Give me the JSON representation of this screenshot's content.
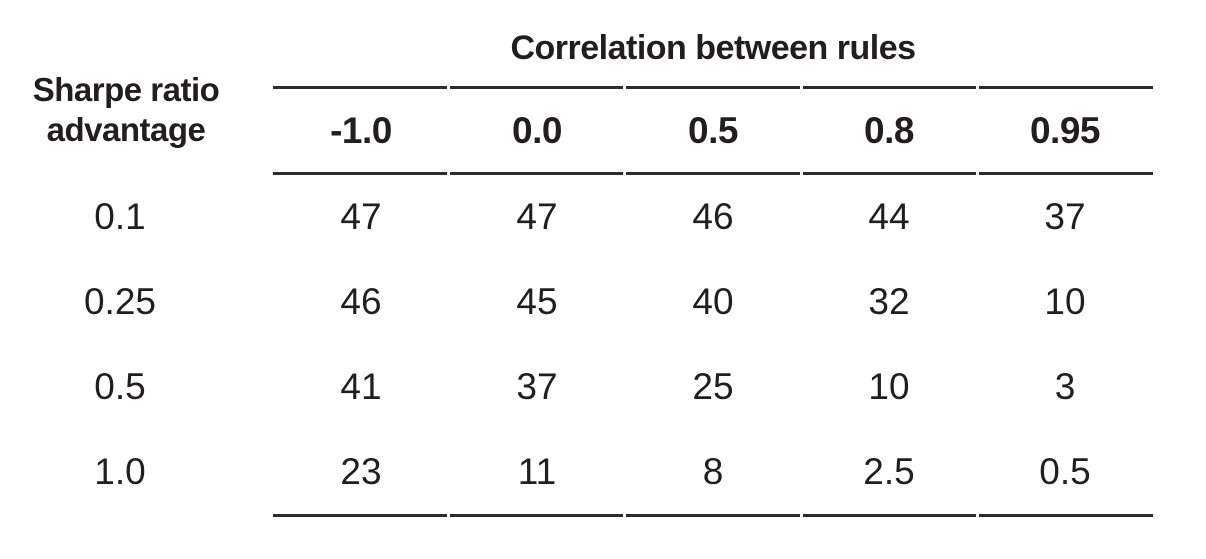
{
  "table": {
    "title": "Correlation between rules",
    "row_header": "Sharpe ratio advantage",
    "row_header_lines": [
      "Sharpe ratio",
      "advantage"
    ],
    "columns": [
      "-1.0",
      "0.0",
      "0.5",
      "0.8",
      "0.95"
    ],
    "rows": [
      {
        "label": "0.1",
        "values": [
          "47",
          "47",
          "46",
          "44",
          "37"
        ]
      },
      {
        "label": "0.25",
        "values": [
          "46",
          "45",
          "40",
          "32",
          "10"
        ]
      },
      {
        "label": "0.5",
        "values": [
          "41",
          "37",
          "25",
          "10",
          "3"
        ]
      },
      {
        "label": "1.0",
        "values": [
          "23",
          "11",
          "8",
          "2.5",
          "0.5"
        ]
      }
    ],
    "colors": {
      "text": "#221e1f",
      "rule": "#2f2b2c",
      "background": "#ffffff"
    }
  },
  "chart_data": {
    "type": "table",
    "title": "Correlation between rules",
    "row_axis_label": "Sharpe ratio advantage",
    "column_axis_label": "Correlation between rules",
    "columns": [
      -1.0,
      0.0,
      0.5,
      0.8,
      0.95
    ],
    "rows": [
      0.1,
      0.25,
      0.5,
      1.0
    ],
    "values": [
      [
        47,
        47,
        46,
        44,
        37
      ],
      [
        46,
        45,
        40,
        32,
        10
      ],
      [
        41,
        37,
        25,
        10,
        3
      ],
      [
        23,
        11,
        8,
        2.5,
        0.5
      ]
    ]
  }
}
